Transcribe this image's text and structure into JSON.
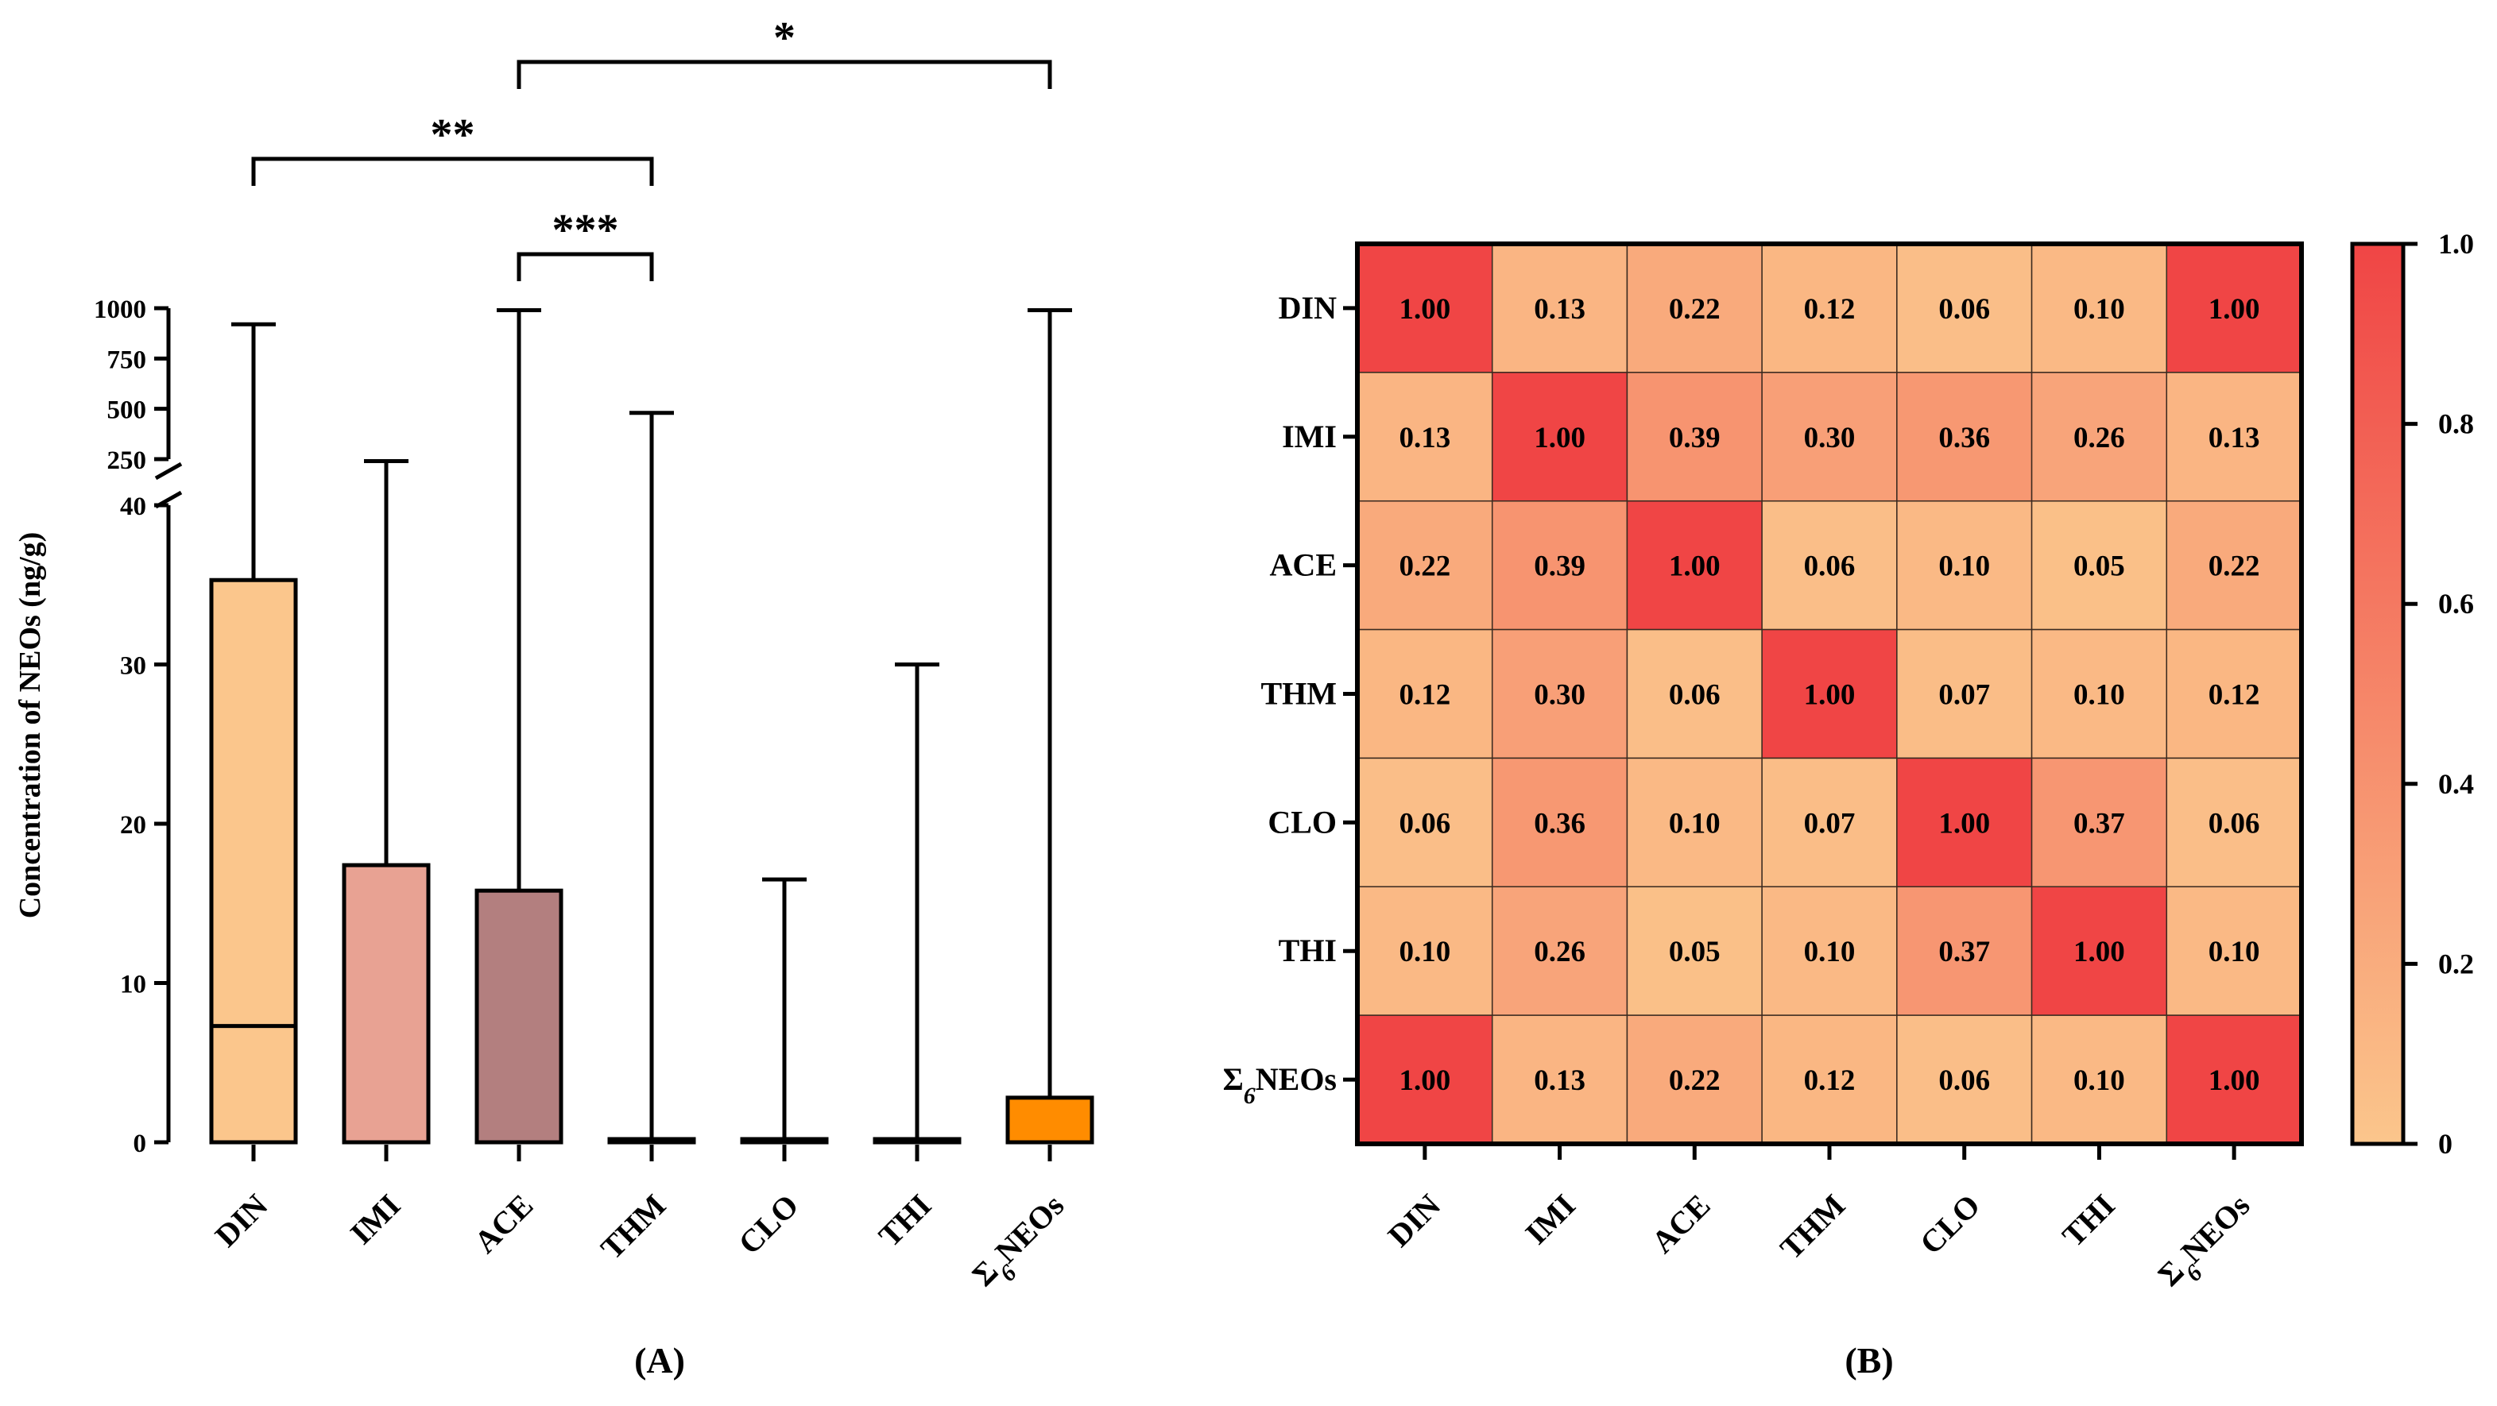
{
  "chart_data": [
    {
      "type": "box",
      "panel_label": "(A)",
      "ylabel": "Concentration of  NEOs (ng/g)",
      "y_axis_break": true,
      "lower_segment": {
        "ylim": [
          0,
          40
        ],
        "ticks": [
          "0",
          "10",
          "20",
          "30",
          "40"
        ]
      },
      "upper_segment": {
        "ylim": [
          250,
          1000
        ],
        "ticks": [
          "250",
          "500",
          "750",
          "1000"
        ]
      },
      "categories": [
        "DIN",
        "IMI",
        "ACE",
        "THM",
        "CLO",
        "THI",
        "Σ6NEOs"
      ],
      "boxes": [
        {
          "name": "DIN",
          "min": 0,
          "q1": 0,
          "median": 7.3,
          "q3": 35.3,
          "max": 920,
          "color": "#fbc68c"
        },
        {
          "name": "IMI",
          "min": 0,
          "q1": 0,
          "median": 0,
          "q3": 17.4,
          "max": 240,
          "color": "#e8a293"
        },
        {
          "name": "ACE",
          "min": 0,
          "q1": 0,
          "median": 0,
          "q3": 15.8,
          "max": 990,
          "color": "#b37f7f"
        },
        {
          "name": "THM",
          "min": 0,
          "q1": 0,
          "median": 0,
          "q3": 0.2,
          "max": 480,
          "color": "#ffffff"
        },
        {
          "name": "CLO",
          "min": 0,
          "q1": 0,
          "median": 0,
          "q3": 0.2,
          "max": 16.5,
          "color": "#ffffff"
        },
        {
          "name": "THI",
          "min": 0,
          "q1": 0,
          "median": 0,
          "q3": 0.2,
          "max": 30,
          "color": "#ffffff"
        },
        {
          "name": "Σ6NEOs",
          "min": 0,
          "q1": 0,
          "median": 0,
          "q3": 2.8,
          "max": 990,
          "color": "#ff8c00"
        }
      ],
      "significance": [
        {
          "from": "ACE",
          "to": "Σ6NEOs",
          "label": "*"
        },
        {
          "from": "DIN",
          "to": "THM",
          "label": "**"
        },
        {
          "from": "ACE",
          "to": "THM",
          "label": "***"
        }
      ]
    },
    {
      "type": "heatmap",
      "panel_label": "(B)",
      "rows": [
        "DIN",
        "IMI",
        "ACE",
        "THM",
        "CLO",
        "THI",
        "Σ6NEOs"
      ],
      "cols": [
        "DIN",
        "IMI",
        "ACE",
        "THM",
        "CLO",
        "THI",
        "Σ6NEOs"
      ],
      "values": [
        [
          1.0,
          0.13,
          0.22,
          0.12,
          0.06,
          0.1,
          1.0
        ],
        [
          0.13,
          1.0,
          0.39,
          0.3,
          0.36,
          0.26,
          0.13
        ],
        [
          0.22,
          0.39,
          1.0,
          0.06,
          0.1,
          0.05,
          0.22
        ],
        [
          0.12,
          0.3,
          0.06,
          1.0,
          0.07,
          0.1,
          0.12
        ],
        [
          0.06,
          0.36,
          0.1,
          0.07,
          1.0,
          0.37,
          0.06
        ],
        [
          0.1,
          0.26,
          0.05,
          0.1,
          0.37,
          1.0,
          0.1
        ],
        [
          1.0,
          0.13,
          0.22,
          0.12,
          0.06,
          0.1,
          1.0
        ]
      ],
      "colorbar": {
        "range": [
          0,
          1.0
        ],
        "ticks": [
          "0",
          "0.2",
          "0.4",
          "0.6",
          "0.8",
          "1.0"
        ],
        "low_color": "#fbc68c",
        "high_color": "#f04545"
      }
    }
  ]
}
